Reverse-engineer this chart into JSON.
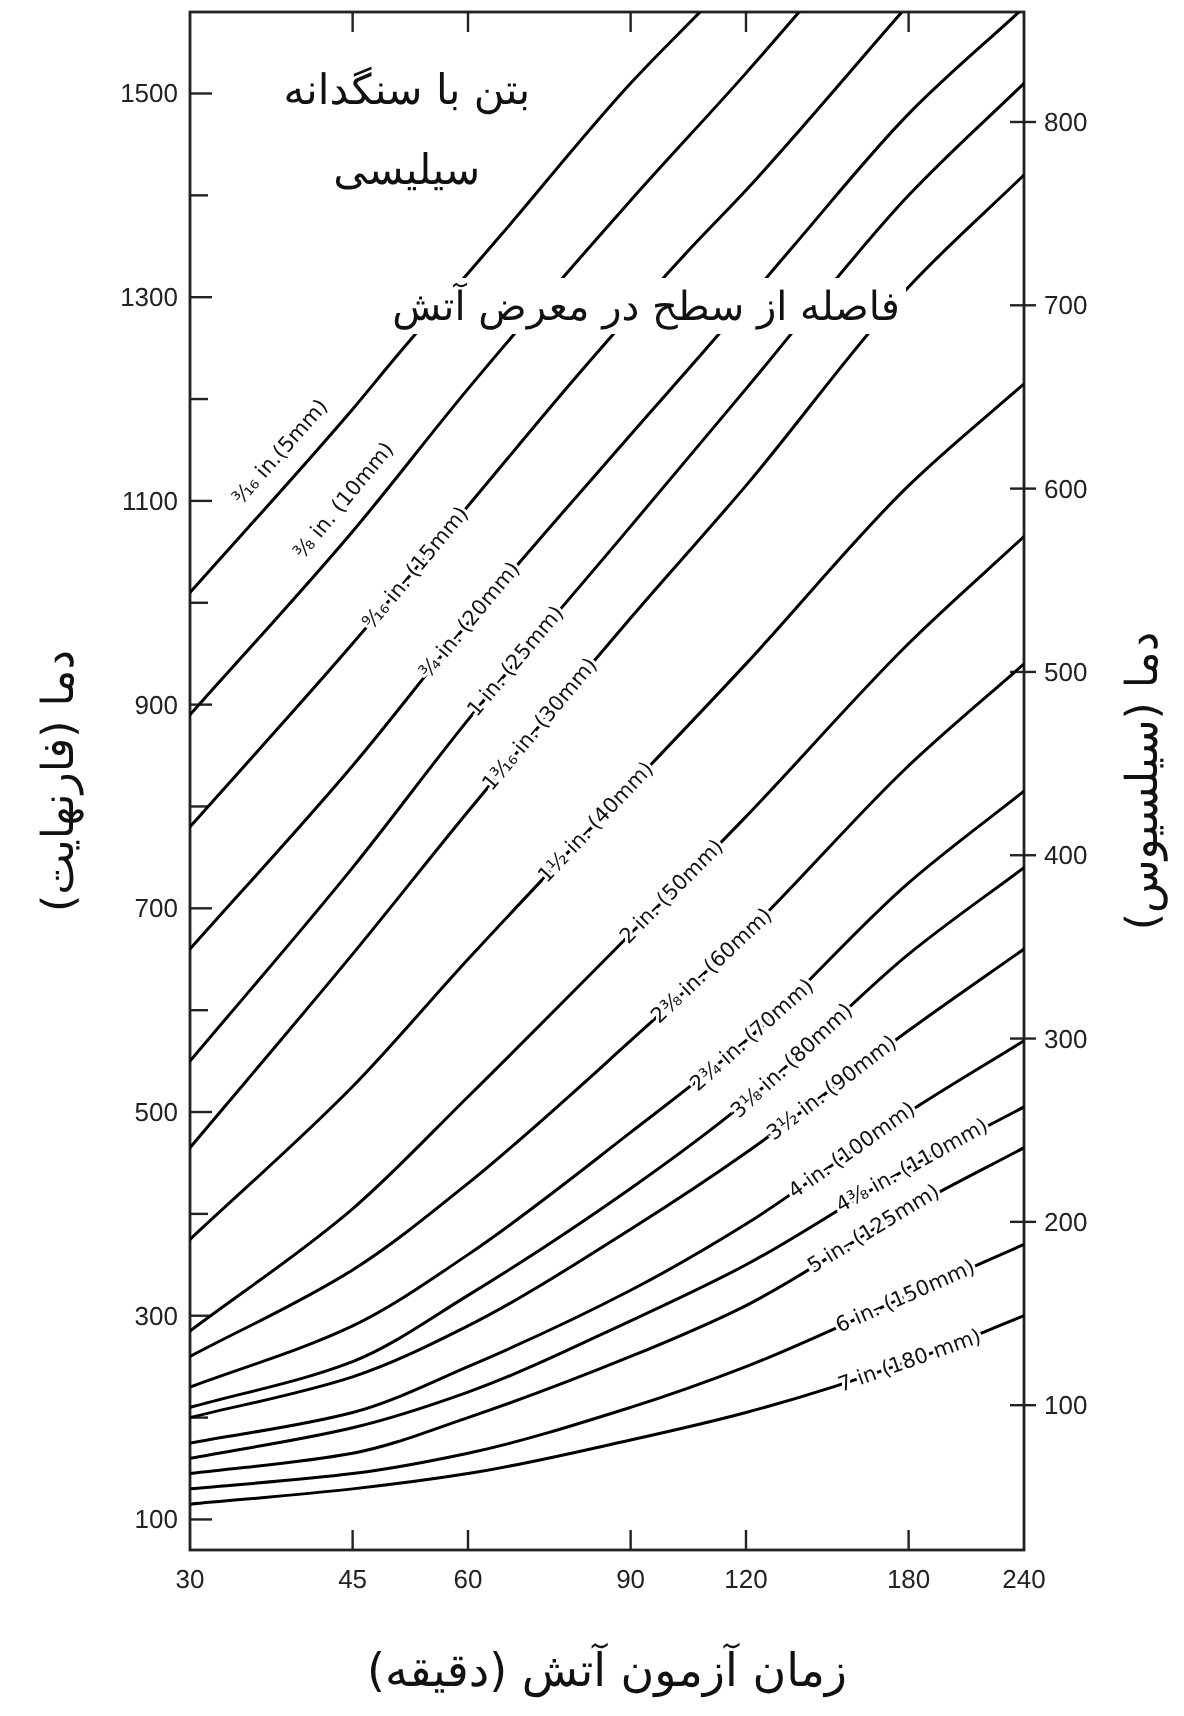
{
  "chart_data": {
    "type": "line",
    "title": "بتن با سنگدانه سیلیسی",
    "xlabel": "زمان آزمون آتش (دقیقه)",
    "ylabel": "دما (فارنهایت)",
    "y2label": "دما (سیلسیوس)",
    "annotations": [
      "فاصله از سطح در معرض آتش"
    ],
    "log": "x",
    "xlim": [
      30,
      240
    ],
    "xticks": [
      30,
      45,
      60,
      90,
      120,
      180,
      240
    ],
    "ylim": [
      70,
      1580
    ],
    "yticks": [
      100,
      {
        "value": 200,
        "label": null
      },
      300,
      {
        "value": 400,
        "label": null
      },
      500,
      {
        "value": 600,
        "label": null
      },
      700,
      {
        "value": 800,
        "label": null
      },
      900,
      {
        "value": 1000,
        "label": null
      },
      1100,
      {
        "value": 1200,
        "label": null
      },
      1300,
      {
        "value": 1400,
        "label": null
      },
      1500
    ],
    "y2lim": [
      21,
      860
    ],
    "y2ticks": [
      100,
      200,
      300,
      400,
      500,
      600,
      700,
      800
    ],
    "line_style": "solid",
    "series": [
      {
        "name": "³⁄₁₆ in.(5mm)",
        "color": "#000000",
        "x": [
          30,
          45,
          50,
          65,
          90,
          107
        ],
        "values": [
          1010,
          1190,
          1240,
          1360,
          1510,
          1580
        ]
      },
      {
        "name": "³⁄₈ in. (10mm)",
        "color": "#000000",
        "x": [
          30,
          45,
          60,
          90,
          120,
          137
        ],
        "values": [
          890,
          1070,
          1210,
          1395,
          1520,
          1580
        ]
      },
      {
        "name": "⁹⁄₁₆ in. (15mm)",
        "color": "#000000",
        "x": [
          30,
          45,
          60,
          80,
          105,
          120,
          177
        ],
        "values": [
          780,
          960,
          1095,
          1230,
          1350,
          1405,
          1580
        ]
      },
      {
        "name": "³⁄₄ in. (20mm)",
        "color": "#000000",
        "x": [
          30,
          45,
          60,
          90,
          110,
          135,
          180,
          237
        ],
        "values": [
          660,
          840,
          980,
          1165,
          1255,
          1350,
          1480,
          1580
        ]
      },
      {
        "name": "1 in. (25mm)",
        "color": "#000000",
        "x": [
          30,
          45,
          60,
          90,
          120,
          180,
          240
        ],
        "values": [
          550,
          740,
          885,
          1075,
          1210,
          1400,
          1510
        ]
      },
      {
        "name": "1³⁄₁₆ in. (30mm)",
        "color": "#000000",
        "x": [
          30,
          45,
          60,
          90,
          120,
          180,
          240
        ],
        "values": [
          465,
          655,
          795,
          985,
          1115,
          1310,
          1420
        ]
      },
      {
        "name": "1½ in. (40mm)",
        "color": "#000000",
        "x": [
          30,
          45,
          60,
          90,
          120,
          180,
          240
        ],
        "values": [
          375,
          525,
          650,
          820,
          940,
          1115,
          1215
        ]
      },
      {
        "name": "2 in. (50mm)",
        "color": "#000000",
        "x": [
          30,
          45,
          60,
          90,
          120,
          180,
          240
        ],
        "values": [
          285,
          405,
          515,
          675,
          790,
          960,
          1065
        ]
      },
      {
        "name": "2³⁄₈ in. (60mm)",
        "color": "#000000",
        "x": [
          30,
          45,
          60,
          90,
          120,
          180,
          240
        ],
        "values": [
          260,
          345,
          430,
          570,
          675,
          840,
          940
        ]
      },
      {
        "name": "2³⁄₄ in. (70mm)",
        "color": "#000000",
        "x": [
          30,
          45,
          60,
          90,
          120,
          180,
          240
        ],
        "values": [
          230,
          290,
          360,
          480,
          570,
          725,
          815
        ]
      },
      {
        "name": "3¹⁄₈ in. (80mm)",
        "color": "#000000",
        "x": [
          30,
          45,
          60,
          90,
          120,
          180,
          240
        ],
        "values": [
          210,
          255,
          320,
          425,
          510,
          655,
          740
        ]
      },
      {
        "name": "3½ in. (90mm)",
        "color": "#000000",
        "x": [
          30,
          45,
          60,
          90,
          120,
          180,
          240
        ],
        "values": [
          200,
          240,
          290,
          385,
          460,
          580,
          660
        ]
      },
      {
        "name": "4 in. (100mm)",
        "color": "#000000",
        "x": [
          30,
          45,
          60,
          90,
          120,
          180,
          240
        ],
        "values": [
          175,
          205,
          250,
          325,
          390,
          500,
          570
        ]
      },
      {
        "name": "4³⁄₈ in. (110mm)",
        "color": "#000000",
        "x": [
          30,
          45,
          60,
          90,
          120,
          180,
          240
        ],
        "values": [
          160,
          190,
          225,
          295,
          350,
          445,
          505
        ]
      },
      {
        "name": "5 in. (125mm)",
        "color": "#000000",
        "x": [
          30,
          45,
          60,
          90,
          120,
          180,
          240
        ],
        "values": [
          145,
          165,
          200,
          260,
          310,
          405,
          465
        ]
      },
      {
        "name": "6 in. (150mm)",
        "color": "#000000",
        "x": [
          30,
          45,
          60,
          90,
          120,
          180,
          240
        ],
        "values": [
          130,
          145,
          165,
          210,
          250,
          320,
          370
        ]
      },
      {
        "name": "7 in (180 mm)",
        "color": "#000000",
        "x": [
          30,
          45,
          60,
          90,
          120,
          180,
          240
        ],
        "values": [
          115,
          130,
          145,
          178,
          205,
          255,
          300
        ]
      }
    ]
  }
}
